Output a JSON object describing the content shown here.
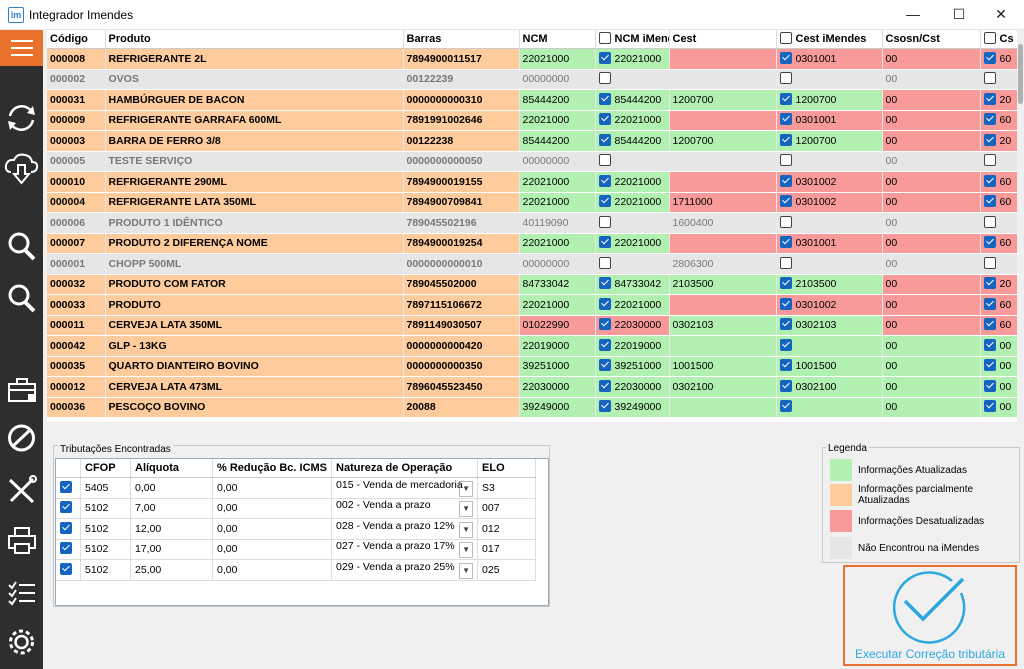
{
  "window": {
    "title": "Integrador Imendes",
    "icon": "im",
    "controls": [
      "minimize-icon",
      "maximize-icon",
      "close-icon"
    ]
  },
  "sidebar": {
    "icons": [
      "hamburger-menu-icon",
      "sync-icon",
      "cloud-download-icon",
      "search-icon",
      "search-alt-icon",
      "toolbox-icon",
      "cancel-icon",
      "tools-icon",
      "printer-icon",
      "checklist-icon",
      "gear-icon"
    ]
  },
  "grid": {
    "columns": [
      "Código",
      "Produto",
      "Barras",
      "NCM",
      "NCM iMendes",
      "Cest",
      "Cest iMendes",
      "Csosn/Cst",
      "Cs"
    ],
    "rows": [
      {
        "type": "orange",
        "codigo": "000008",
        "produto": "REFRIGERANTE  2L",
        "barras": "7894900011517",
        "ncm": "22021000",
        "ncm_c": "g",
        "ncmi": "22021000",
        "ncmi_on": true,
        "ncmi_c": "g",
        "cest": "",
        "cest_c": "r",
        "cesti": "0301001",
        "cesti_on": true,
        "cesti_c": "r",
        "csosn": "00",
        "csosn_c": "r",
        "cs": "60",
        "cs_on": true,
        "cs_c": "r"
      },
      {
        "type": "gray",
        "codigo": "000002",
        "produto": "OVOS",
        "barras": "00122239",
        "ncm": "00000000",
        "ncm_c": "gr",
        "ncmi": "",
        "ncmi_on": false,
        "ncmi_c": "gr",
        "cest": "",
        "cest_c": "gr",
        "cesti": "",
        "cesti_on": false,
        "cesti_c": "gr",
        "csosn": "00",
        "csosn_c": "gr",
        "cs": "",
        "cs_on": false,
        "cs_c": "gr"
      },
      {
        "type": "orange",
        "codigo": "000031",
        "produto": "HAMBÚRGUER DE BACON",
        "barras": "0000000000310",
        "ncm": "85444200",
        "ncm_c": "g",
        "ncmi": "85444200",
        "ncmi_on": true,
        "ncmi_c": "g",
        "cest": "1200700",
        "cest_c": "g",
        "cesti": "1200700",
        "cesti_on": true,
        "cesti_c": "g",
        "csosn": "00",
        "csosn_c": "r",
        "cs": "20",
        "cs_on": true,
        "cs_c": "r"
      },
      {
        "type": "orange",
        "codigo": "000009",
        "produto": "REFRIGERANTE GARRAFA 600ML",
        "barras": "7891991002646",
        "ncm": "22021000",
        "ncm_c": "g",
        "ncmi": "22021000",
        "ncmi_on": true,
        "ncmi_c": "g",
        "cest": "",
        "cest_c": "r",
        "cesti": "0301001",
        "cesti_on": true,
        "cesti_c": "r",
        "csosn": "00",
        "csosn_c": "r",
        "cs": "60",
        "cs_on": true,
        "cs_c": "r"
      },
      {
        "type": "orange",
        "codigo": "000003",
        "produto": "BARRA DE FERRO 3/8",
        "barras": "00122238",
        "ncm": "85444200",
        "ncm_c": "g",
        "ncmi": "85444200",
        "ncmi_on": true,
        "ncmi_c": "g",
        "cest": "1200700",
        "cest_c": "g",
        "cesti": "1200700",
        "cesti_on": true,
        "cesti_c": "g",
        "csosn": "00",
        "csosn_c": "r",
        "cs": "20",
        "cs_on": true,
        "cs_c": "r"
      },
      {
        "type": "gray",
        "codigo": "000005",
        "produto": "TESTE SERVIÇO",
        "barras": "0000000000050",
        "ncm": "00000000",
        "ncm_c": "gr",
        "ncmi": "",
        "ncmi_on": false,
        "ncmi_c": "gr",
        "cest": "",
        "cest_c": "gr",
        "cesti": "",
        "cesti_on": false,
        "cesti_c": "gr",
        "csosn": "00",
        "csosn_c": "gr",
        "cs": "",
        "cs_on": false,
        "cs_c": "gr"
      },
      {
        "type": "orange",
        "codigo": "000010",
        "produto": "REFRIGERANTE 290ML",
        "barras": "7894900019155",
        "ncm": "22021000",
        "ncm_c": "g",
        "ncmi": "22021000",
        "ncmi_on": true,
        "ncmi_c": "g",
        "cest": "",
        "cest_c": "r",
        "cesti": "0301002",
        "cesti_on": true,
        "cesti_c": "r",
        "csosn": "00",
        "csosn_c": "r",
        "cs": "60",
        "cs_on": true,
        "cs_c": "r"
      },
      {
        "type": "orange",
        "codigo": "000004",
        "produto": "REFRIGERANTE LATA 350ML",
        "barras": "7894900709841",
        "ncm": "22021000",
        "ncm_c": "g",
        "ncmi": "22021000",
        "ncmi_on": true,
        "ncmi_c": "g",
        "cest": "1711000",
        "cest_c": "r",
        "cesti": "0301002",
        "cesti_on": true,
        "cesti_c": "r",
        "csosn": "00",
        "csosn_c": "r",
        "cs": "60",
        "cs_on": true,
        "cs_c": "r"
      },
      {
        "type": "gray",
        "codigo": "000006",
        "produto": "PRODUTO 1 IDÊNTICO",
        "barras": "789045502196",
        "ncm": "40119090",
        "ncm_c": "gr",
        "ncmi": "",
        "ncmi_on": false,
        "ncmi_c": "gr",
        "cest": "1600400",
        "cest_c": "gr",
        "cesti": "",
        "cesti_on": false,
        "cesti_c": "gr",
        "csosn": "00",
        "csosn_c": "gr",
        "cs": "",
        "cs_on": false,
        "cs_c": "gr"
      },
      {
        "type": "orange",
        "codigo": "000007",
        "produto": "PRODUTO 2 DIFERENÇA NOME",
        "barras": "7894900019254",
        "ncm": "22021000",
        "ncm_c": "g",
        "ncmi": "22021000",
        "ncmi_on": true,
        "ncmi_c": "g",
        "cest": "",
        "cest_c": "r",
        "cesti": "0301001",
        "cesti_on": true,
        "cesti_c": "r",
        "csosn": "00",
        "csosn_c": "r",
        "cs": "60",
        "cs_on": true,
        "cs_c": "r"
      },
      {
        "type": "gray",
        "codigo": "000001",
        "produto": "CHOPP 500ML",
        "barras": "0000000000010",
        "ncm": "00000000",
        "ncm_c": "gr",
        "ncmi": "",
        "ncmi_on": false,
        "ncmi_c": "gr",
        "cest": "2806300",
        "cest_c": "gr",
        "cesti": "",
        "cesti_on": false,
        "cesti_c": "gr",
        "csosn": "00",
        "csosn_c": "gr",
        "cs": "",
        "cs_on": false,
        "cs_c": "gr"
      },
      {
        "type": "orange",
        "codigo": "000032",
        "produto": "PRODUTO COM FATOR",
        "barras": "789045502000",
        "ncm": "84733042",
        "ncm_c": "g",
        "ncmi": "84733042",
        "ncmi_on": true,
        "ncmi_c": "g",
        "cest": "2103500",
        "cest_c": "g",
        "cesti": "2103500",
        "cesti_on": true,
        "cesti_c": "g",
        "csosn": "00",
        "csosn_c": "r",
        "cs": "20",
        "cs_on": true,
        "cs_c": "r"
      },
      {
        "type": "orange",
        "codigo": "000033",
        "produto": "PRODUTO",
        "barras": "7897115106672",
        "ncm": "22021000",
        "ncm_c": "g",
        "ncmi": "22021000",
        "ncmi_on": true,
        "ncmi_c": "g",
        "cest": "",
        "cest_c": "r",
        "cesti": "0301002",
        "cesti_on": true,
        "cesti_c": "r",
        "csosn": "00",
        "csosn_c": "r",
        "cs": "60",
        "cs_on": true,
        "cs_c": "r"
      },
      {
        "type": "orange",
        "codigo": "000011",
        "produto": "CERVEJA LATA 350ML",
        "barras": "7891149030507",
        "ncm": "01022990",
        "ncm_c": "r",
        "ncmi": "22030000",
        "ncmi_on": true,
        "ncmi_c": "r",
        "cest": "0302103",
        "cest_c": "g",
        "cesti": "0302103",
        "cesti_on": true,
        "cesti_c": "g",
        "csosn": "00",
        "csosn_c": "r",
        "cs": "60",
        "cs_on": true,
        "cs_c": "r"
      },
      {
        "type": "orange",
        "codigo": "000042",
        "produto": "GLP - 13KG",
        "barras": "0000000000420",
        "ncm": "22019000",
        "ncm_c": "g",
        "ncmi": "22019000",
        "ncmi_on": true,
        "ncmi_c": "g",
        "cest": "",
        "cest_c": "g",
        "cesti": "",
        "cesti_on": true,
        "cesti_c": "g",
        "csosn": "00",
        "csosn_c": "g",
        "cs": "00",
        "cs_on": true,
        "cs_c": "g"
      },
      {
        "type": "orange",
        "codigo": "000035",
        "produto": "QUARTO DIANTEIRO BOVINO",
        "barras": "0000000000350",
        "ncm": "39251000",
        "ncm_c": "g",
        "ncmi": "39251000",
        "ncmi_on": true,
        "ncmi_c": "g",
        "cest": "1001500",
        "cest_c": "g",
        "cesti": "1001500",
        "cesti_on": true,
        "cesti_c": "g",
        "csosn": "00",
        "csosn_c": "g",
        "cs": "00",
        "cs_on": true,
        "cs_c": "g"
      },
      {
        "type": "orange",
        "codigo": "000012",
        "produto": "CERVEJA LATA 473ML",
        "barras": "7896045523450",
        "ncm": "22030000",
        "ncm_c": "g",
        "ncmi": "22030000",
        "ncmi_on": true,
        "ncmi_c": "g",
        "cest": "0302100",
        "cest_c": "g",
        "cesti": "0302100",
        "cesti_on": true,
        "cesti_c": "g",
        "csosn": "00",
        "csosn_c": "g",
        "cs": "00",
        "cs_on": true,
        "cs_c": "g"
      },
      {
        "type": "orange",
        "codigo": "000036",
        "produto": "PESCOÇO BOVINO",
        "barras": "20088",
        "ncm": "39249000",
        "ncm_c": "g",
        "ncmi": "39249000",
        "ncmi_on": true,
        "ncmi_c": "g",
        "cest": "",
        "cest_c": "g",
        "cesti": "",
        "cesti_on": true,
        "cesti_c": "g",
        "csosn": "00",
        "csosn_c": "g",
        "cs": "00",
        "cs_on": true,
        "cs_c": "g"
      }
    ]
  },
  "tributacoes": {
    "title": "Tributações Encontradas",
    "columns": [
      "",
      "CFOP",
      "Alíquota",
      "% Redução Bc. ICMS",
      "Natureza de Operação",
      "ELO"
    ],
    "rows": [
      {
        "checked": true,
        "cfop": "5405",
        "aliquota": "0,00",
        "reducao": "0,00",
        "natureza": "015 - Venda de mercadoria",
        "elo": "S3"
      },
      {
        "checked": true,
        "cfop": "5102",
        "aliquota": "7,00",
        "reducao": "0,00",
        "natureza": "002 - Venda a prazo",
        "elo": "007"
      },
      {
        "checked": true,
        "cfop": "5102",
        "aliquota": "12,00",
        "reducao": "0,00",
        "natureza": "028 - Venda a prazo 12%",
        "elo": "012"
      },
      {
        "checked": true,
        "cfop": "5102",
        "aliquota": "17,00",
        "reducao": "0,00",
        "natureza": "027 - Venda a prazo 17%",
        "elo": "017"
      },
      {
        "checked": true,
        "cfop": "5102",
        "aliquota": "25,00",
        "reducao": "0,00",
        "natureza": "029 - Venda a prazo 25%",
        "elo": "025"
      }
    ]
  },
  "legenda": {
    "title": "Legenda",
    "items": [
      {
        "color": "#b2f0b2",
        "label": "Informações Atualizadas"
      },
      {
        "color": "#fecb9c",
        "label": "Informações parcialmente Atualizadas"
      },
      {
        "color": "#f89a9a",
        "label": "Informações Desatualizadas"
      },
      {
        "color": "#e6e6e6",
        "label": "Não Encontrou na iMendes"
      }
    ]
  },
  "action": {
    "label": "Executar Correção tributária",
    "icon": "checkmark-circle-icon",
    "accent": "#e8722b",
    "icon_color": "#2da7e0"
  }
}
